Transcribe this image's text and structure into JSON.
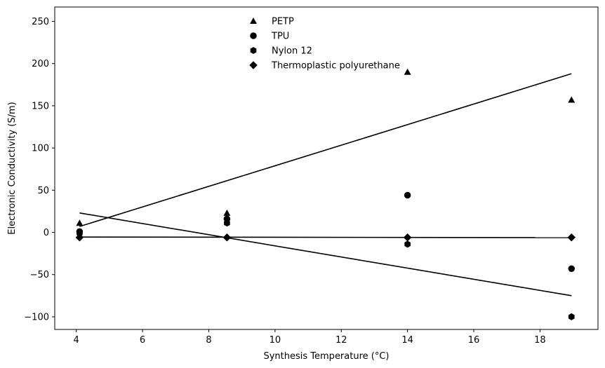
{
  "chart_data": {
    "type": "scatter",
    "xlabel": "Synthesis Temperature (°C)",
    "ylabel": "Electronic Conductivity (S/m)",
    "xlim": [
      3.35,
      19.75
    ],
    "ylim": [
      -115,
      267
    ],
    "xticks": [
      4,
      6,
      8,
      10,
      12,
      14,
      16,
      18
    ],
    "yticks": [
      -100,
      -50,
      0,
      50,
      100,
      150,
      200,
      250
    ],
    "grid": false,
    "legend_placement": "upper center",
    "series": [
      {
        "name": "PETP",
        "marker": "triangle",
        "x": [
          4.1,
          8.55,
          14.0,
          18.95
        ],
        "y": [
          11,
          23,
          190,
          157
        ],
        "fit": {
          "x": [
            4.1,
            18.95
          ],
          "y": [
            7,
            188
          ]
        }
      },
      {
        "name": "TPU",
        "marker": "circle",
        "x": [
          4.1,
          8.55,
          14.0,
          18.95
        ],
        "y": [
          1,
          16,
          44,
          -43
        ],
        "fit": null
      },
      {
        "name": "Nylon 12",
        "marker": "hexagon",
        "x": [
          4.1,
          8.55,
          14.0,
          18.95
        ],
        "y": [
          -1,
          11,
          -14,
          -100
        ],
        "fit": {
          "x": [
            4.1,
            18.95
          ],
          "y": [
            23,
            -75
          ]
        }
      },
      {
        "name": "Thermoplastic polyurethane",
        "marker": "diamond",
        "x": [
          4.1,
          8.55,
          14.0,
          18.95
        ],
        "y": [
          -6,
          -6,
          -6,
          -6
        ],
        "fit": {
          "x": [
            4.1,
            18.95
          ],
          "y": [
            -5.5,
            -6.2
          ]
        }
      }
    ],
    "colors": {
      "marker": "#000000",
      "line": "#000000",
      "axes": "#000000"
    }
  }
}
